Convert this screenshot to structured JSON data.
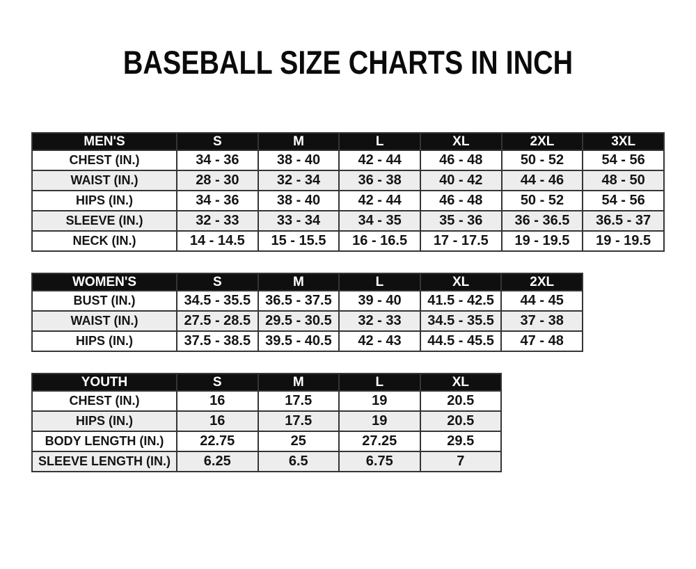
{
  "title": "BASEBALL SIZE CHARTS IN INCH",
  "colors": {
    "header_bg": "#0f0f0f",
    "header_text": "#ffffff",
    "row_alt": "#ededed",
    "border": "#353535"
  },
  "chart_data": [
    {
      "type": "table",
      "id": "mens",
      "group_label": "MEN'S",
      "header": [
        "MEN'S",
        "S",
        "M",
        "L",
        "XL",
        "2XL",
        "3XL"
      ],
      "rows": [
        [
          "CHEST (IN.)",
          "34 - 36",
          "38 - 40",
          "42 - 44",
          "46 - 48",
          "50 - 52",
          "54 - 56"
        ],
        [
          "WAIST (IN.)",
          "28 - 30",
          "32 - 34",
          "36 - 38",
          "40 - 42",
          "44 - 46",
          "48 - 50"
        ],
        [
          "HIPS (IN.)",
          "34 - 36",
          "38 - 40",
          "42 - 44",
          "46 - 48",
          "50 - 52",
          "54 - 56"
        ],
        [
          "SLEEVE (IN.)",
          "32 - 33",
          "33 - 34",
          "34 - 35",
          "35 - 36",
          "36 - 36.5",
          "36.5 - 37"
        ],
        [
          "NECK (IN.)",
          "14 - 14.5",
          "15 - 15.5",
          "16 - 16.5",
          "17 - 17.5",
          "19 - 19.5",
          "19 - 19.5"
        ]
      ]
    },
    {
      "type": "table",
      "id": "womens",
      "group_label": "WOMEN'S",
      "header": [
        "WOMEN'S",
        "S",
        "M",
        "L",
        "XL",
        "2XL"
      ],
      "rows": [
        [
          "BUST (IN.)",
          "34.5 - 35.5",
          "36.5 - 37.5",
          "39 - 40",
          "41.5 - 42.5",
          "44 - 45"
        ],
        [
          "WAIST (IN.)",
          "27.5 - 28.5",
          "29.5 - 30.5",
          "32 - 33",
          "34.5 - 35.5",
          "37 - 38"
        ],
        [
          "HIPS (IN.)",
          "37.5 - 38.5",
          "39.5 - 40.5",
          "42 - 43",
          "44.5 - 45.5",
          "47 - 48"
        ]
      ]
    },
    {
      "type": "table",
      "id": "youth",
      "group_label": "YOUTH",
      "header": [
        "YOUTH",
        "S",
        "M",
        "L",
        "XL"
      ],
      "rows": [
        [
          "CHEST (IN.)",
          "16",
          "17.5",
          "19",
          "20.5"
        ],
        [
          "HIPS (IN.)",
          "16",
          "17.5",
          "19",
          "20.5"
        ],
        [
          "BODY LENGTH (IN.)",
          "22.75",
          "25",
          "27.25",
          "29.5"
        ],
        [
          "SLEEVE LENGTH (IN.)",
          "6.25",
          "6.5",
          "6.75",
          "7"
        ]
      ]
    }
  ]
}
